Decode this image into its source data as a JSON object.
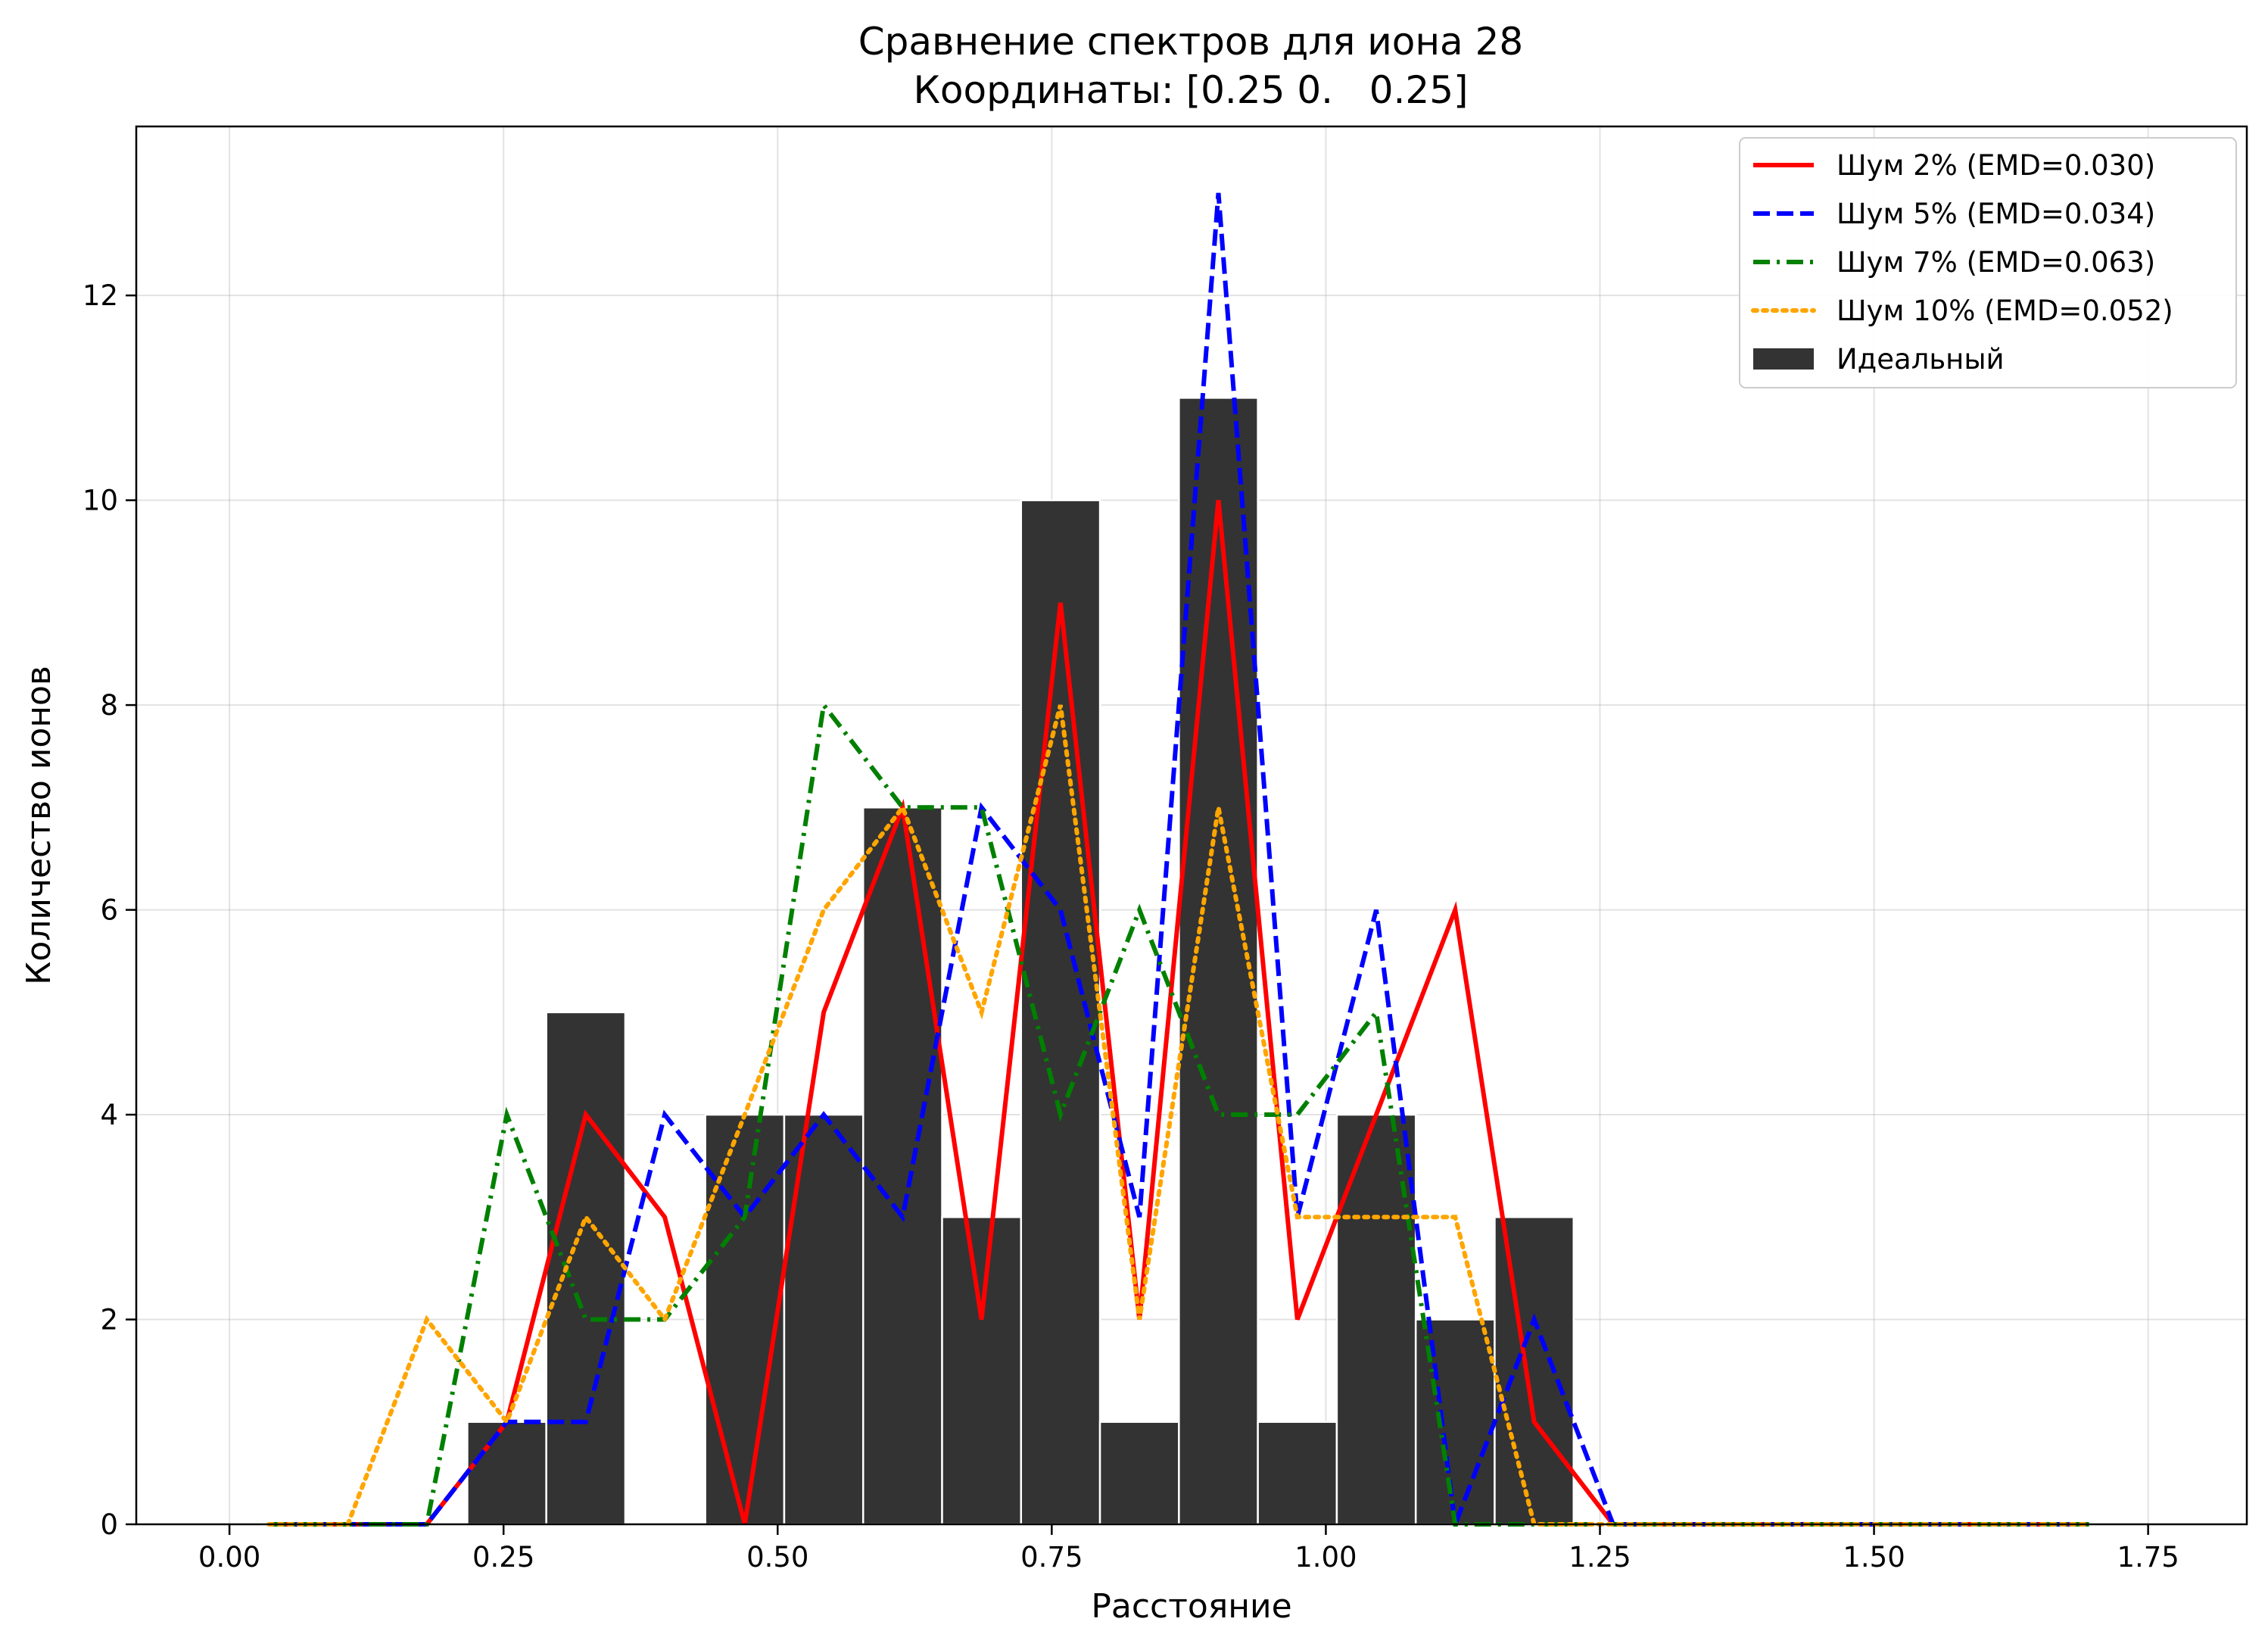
{
  "chart_data": {
    "type": "bar+line",
    "title_line1": "Сравнение спектров для иона 28",
    "title_line2": "Координаты: [0.25 0.   0.25]",
    "xlabel": "Расстояние",
    "ylabel": "Количество ионов",
    "xlim": [
      -0.085,
      1.84
    ],
    "ylim": [
      0,
      13.65
    ],
    "xticks": [
      0.0,
      0.25,
      0.5,
      0.75,
      1.0,
      1.25,
      1.5,
      1.75
    ],
    "xtick_labels": [
      "0.00",
      "0.25",
      "0.50",
      "0.75",
      "1.00",
      "1.25",
      "1.50",
      "1.75"
    ],
    "yticks": [
      0,
      2,
      4,
      6,
      8,
      10,
      12
    ],
    "ytick_labels": [
      "0",
      "2",
      "4",
      "6",
      "8",
      "10",
      "12"
    ],
    "grid": true,
    "legend_position": "top-right",
    "bars": {
      "name": "Идеальный",
      "color": "#333333",
      "width": 0.072,
      "x": [
        0.253,
        0.325,
        0.47,
        0.542,
        0.614,
        0.686,
        0.758,
        0.83,
        0.902,
        0.974,
        1.046,
        1.118,
        1.19
      ],
      "values": [
        1,
        5,
        4,
        4,
        7,
        3,
        10,
        1,
        11,
        1,
        4,
        2,
        3
      ]
    },
    "x": [
      0.036,
      0.108,
      0.18,
      0.253,
      0.325,
      0.397,
      0.47,
      0.542,
      0.614,
      0.686,
      0.758,
      0.83,
      0.902,
      0.974,
      1.046,
      1.118,
      1.19,
      1.262,
      1.335,
      1.407,
      1.479,
      1.551,
      1.623,
      1.696
    ],
    "series": [
      {
        "name": "Шум 2% (EMD=0.030)",
        "color": "#ff0000",
        "dash": "solid",
        "values": [
          0,
          0,
          0,
          1,
          4,
          3,
          0,
          5,
          7,
          2,
          9,
          2,
          10,
          2,
          4,
          6,
          1,
          0,
          0,
          0,
          0,
          0,
          0,
          0
        ]
      },
      {
        "name": "Шум 5% (EMD=0.034)",
        "color": "#0000ff",
        "dash": "dashed",
        "values": [
          0,
          0,
          0,
          1,
          1,
          4,
          3,
          4,
          3,
          7,
          6,
          3,
          13,
          3,
          6,
          0,
          2,
          0,
          0,
          0,
          0,
          0,
          0,
          0
        ]
      },
      {
        "name": "Шум 7% (EMD=0.063)",
        "color": "#008000",
        "dash": "dashdot",
        "values": [
          0,
          0,
          0,
          4,
          2,
          2,
          3,
          8,
          7,
          7,
          4,
          6,
          4,
          4,
          5,
          0,
          0,
          0,
          0,
          0,
          0,
          0,
          0,
          0
        ]
      },
      {
        "name": "Шум 10% (EMD=0.052)",
        "color": "#ffa500",
        "dash": "dotted",
        "values": [
          0,
          0,
          2,
          1,
          3,
          2,
          4,
          6,
          7,
          5,
          8,
          2,
          7,
          3,
          3,
          3,
          0,
          0,
          0,
          0,
          0,
          0,
          0,
          0
        ]
      }
    ]
  }
}
